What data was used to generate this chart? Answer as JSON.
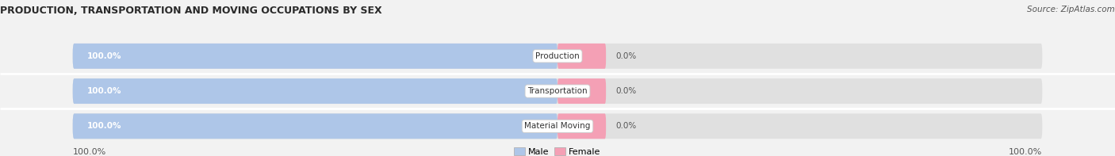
{
  "title": "PRODUCTION, TRANSPORTATION AND MOVING OCCUPATIONS BY SEX",
  "source": "Source: ZipAtlas.com",
  "categories": [
    "Production",
    "Transportation",
    "Material Moving"
  ],
  "male_values": [
    100.0,
    100.0,
    100.0
  ],
  "female_values": [
    0.0,
    0.0,
    0.0
  ],
  "male_color": "#aec6e8",
  "female_color": "#f4a0b5",
  "bg_color": "#f2f2f2",
  "bar_bg_color": "#e0e0e0",
  "x_left_label": "100.0%",
  "x_right_label": "100.0%",
  "title_fontsize": 9,
  "source_fontsize": 7.5,
  "bar_label_fontsize": 7.5,
  "cat_label_fontsize": 7.5,
  "axis_label_fontsize": 8
}
